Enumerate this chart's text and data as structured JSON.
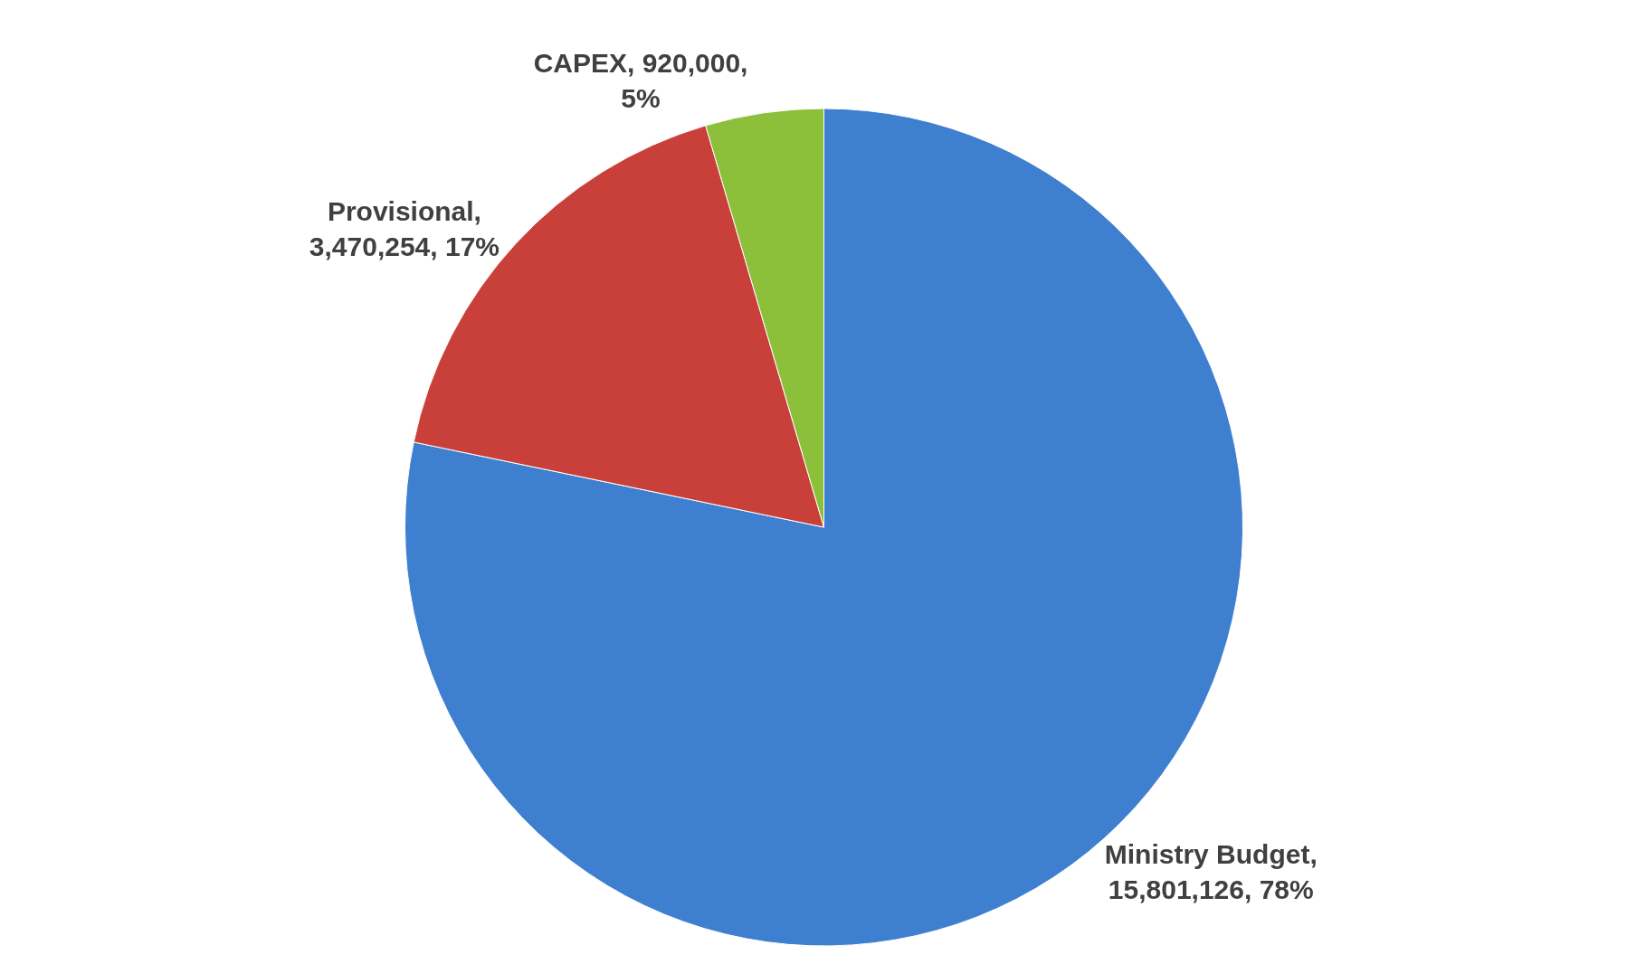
{
  "chart_data": {
    "type": "pie",
    "categories": [
      "Ministry Budget",
      "Provisional",
      "CAPEX"
    ],
    "values": [
      15801126,
      3470254,
      920000
    ],
    "value_labels": [
      ",\n15,801,126, 78%",
      ",\n3,470,254, 17%",
      ", 920,000,\n5%"
    ],
    "colors": [
      "#3f7fd0",
      "#c9403a",
      "#8cbf3a"
    ],
    "legend": false
  }
}
